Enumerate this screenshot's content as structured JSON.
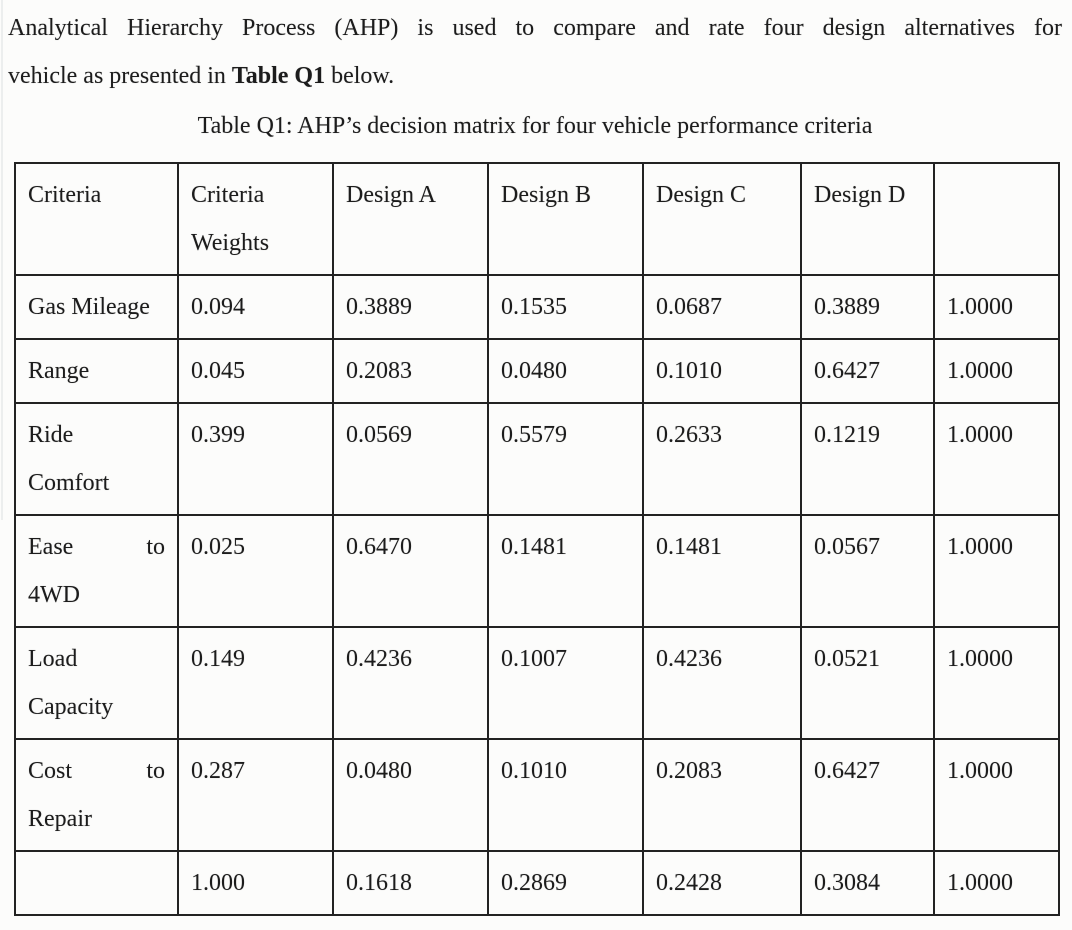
{
  "document": {
    "intro": {
      "line1": "Analytical Hierarchy Process (AHP) is used to compare and rate four design alternatives for",
      "line2_pre": "vehicle as presented in ",
      "line2_bold": "Table Q1",
      "line2_post": " below."
    },
    "caption": "Table Q1: AHP’s decision matrix for four vehicle performance criteria"
  },
  "table": {
    "headers": [
      {
        "lines": [
          "Criteria"
        ]
      },
      {
        "lines": [
          "Criteria",
          "Weights"
        ]
      },
      {
        "lines": [
          "Design A"
        ]
      },
      {
        "lines": [
          "Design B"
        ]
      },
      {
        "lines": [
          "Design C"
        ]
      },
      {
        "lines": [
          "Design D"
        ]
      },
      {
        "lines": []
      }
    ],
    "rows": [
      {
        "label_lines": [
          "Gas Mileage"
        ],
        "values": [
          "0.094",
          "0.3889",
          "0.1535",
          "0.0687",
          "0.3889",
          "1.0000"
        ]
      },
      {
        "label_lines": [
          "Range"
        ],
        "values": [
          "0.045",
          "0.2083",
          "0.0480",
          "0.1010",
          "0.6427",
          "1.0000"
        ]
      },
      {
        "label_lines": [
          "Ride",
          "Comfort"
        ],
        "values": [
          "0.399",
          "0.0569",
          "0.5579",
          "0.2633",
          "0.1219",
          "1.0000"
        ]
      },
      {
        "label_lines": [
          [
            "Ease",
            "to"
          ],
          "4WD"
        ],
        "values": [
          "0.025",
          "0.6470",
          "0.1481",
          "0.1481",
          "0.0567",
          "1.0000"
        ]
      },
      {
        "label_lines": [
          "Load",
          "Capacity"
        ],
        "values": [
          "0.149",
          "0.4236",
          "0.1007",
          "0.4236",
          "0.0521",
          "1.0000"
        ]
      },
      {
        "label_lines": [
          [
            "Cost",
            "to"
          ],
          "Repair"
        ],
        "values": [
          "0.287",
          "0.0480",
          "0.1010",
          "0.2083",
          "0.6427",
          "1.0000"
        ]
      },
      {
        "label_lines": [],
        "values": [
          "1.000",
          "0.1618",
          "0.2869",
          "0.2428",
          "0.3084",
          "1.0000"
        ]
      }
    ]
  },
  "colors": {
    "text": "#1c1c1c",
    "border": "#222222",
    "background": "#fcfcfb"
  }
}
